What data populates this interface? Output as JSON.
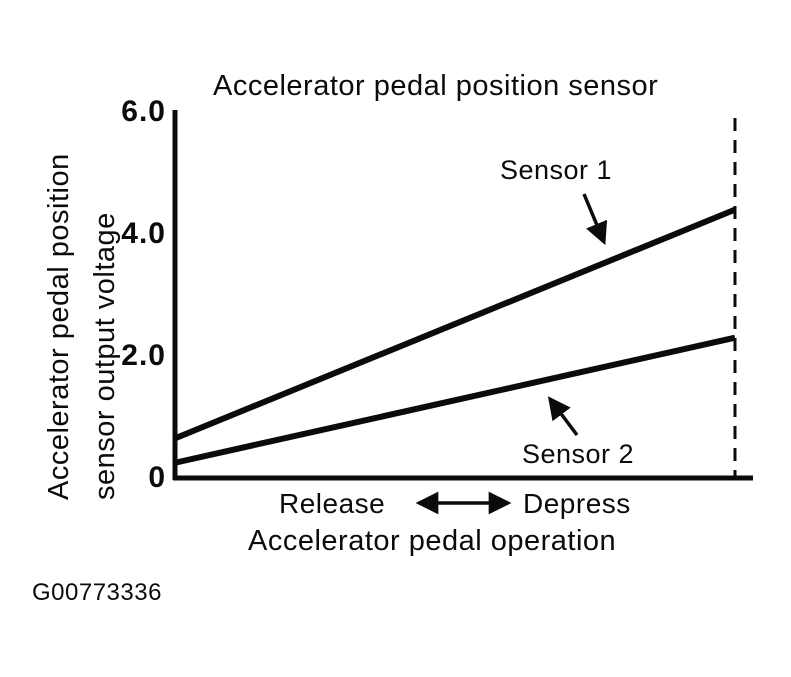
{
  "figure": {
    "title": "Accelerator pedal position sensor",
    "y_axis_label_line1": "Accelerator pedal position",
    "y_axis_label_line2": "sensor output voltage",
    "x_axis_label": "Accelerator pedal operation",
    "x_axis_left_annotation": "Release",
    "x_axis_right_annotation": "Depress",
    "figure_code": "G00773336",
    "ink_color": "#0b0b0b",
    "background_color": "#ffffff"
  },
  "chart_data": {
    "type": "line",
    "title": "Accelerator pedal position sensor",
    "xlabel": "Accelerator pedal operation",
    "ylabel": "Accelerator pedal position sensor output voltage",
    "x_axis_annotations": [
      "Release",
      "Depress"
    ],
    "ylim": [
      0,
      6.0
    ],
    "ytick_values": [
      0,
      2.0,
      4.0,
      6.0
    ],
    "ytick_labels": [
      "0",
      "2.0",
      "4.0",
      "6.0"
    ],
    "x": [
      0,
      1
    ],
    "series": [
      {
        "name": "Sensor 1",
        "values": [
          0.65,
          4.4
        ]
      },
      {
        "name": "Sensor 2",
        "values": [
          0.25,
          2.3
        ]
      }
    ],
    "grid": false,
    "legend_position": "inline annotations with arrows",
    "dashed_vertical_line_at_x": 1
  }
}
